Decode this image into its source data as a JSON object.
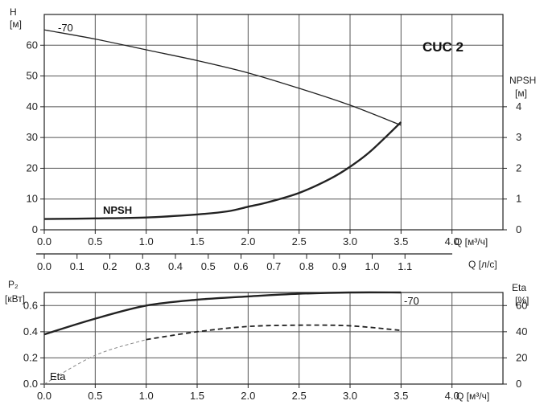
{
  "chart_data": [
    {
      "type": "line",
      "title": "CUC 2",
      "xlabel": "Q [м³/ч]",
      "ylabel_line1": "H",
      "ylabel_line2": "[м]",
      "y2label_line1": "NPSH",
      "y2label_line2": "[м]",
      "xlim": [
        0,
        4.5
      ],
      "ylim": [
        0,
        70
      ],
      "y2lim": [
        0,
        7
      ],
      "x_ticks": [
        "0.0",
        "0.5",
        "1.0",
        "1.5",
        "2.0",
        "2.5",
        "3.0",
        "3.5",
        "4.0"
      ],
      "y_ticks": [
        "0",
        "10",
        "20",
        "30",
        "40",
        "50",
        "60"
      ],
      "y2_ticks": [
        "0",
        "1",
        "2",
        "3",
        "4"
      ],
      "grid": true,
      "series": [
        {
          "name": "-70",
          "axis": "y",
          "x": [
            0.0,
            0.5,
            1.0,
            1.5,
            2.0,
            2.5,
            3.0,
            3.5
          ],
          "y": [
            65,
            62,
            58.5,
            55,
            51,
            46,
            40.5,
            34
          ]
        },
        {
          "name": "NPSH",
          "axis": "y2",
          "x": [
            0.0,
            0.5,
            1.0,
            1.5,
            1.8,
            2.0,
            2.2,
            2.5,
            2.8,
            3.0,
            3.2,
            3.5
          ],
          "y": [
            0.35,
            0.37,
            0.4,
            0.5,
            0.6,
            0.75,
            0.9,
            1.2,
            1.65,
            2.05,
            2.55,
            3.5
          ]
        }
      ]
    },
    {
      "type": "axis",
      "xlabel": "Q [л/с]",
      "x_ticks": [
        "0.0",
        "0.1",
        "0.2",
        "0.3",
        "0.4",
        "0.5",
        "0.6",
        "0.7",
        "0.8",
        "0.9",
        "1.0",
        "1.1"
      ]
    },
    {
      "type": "line",
      "xlabel": "Q [м³/ч]",
      "ylabel_line1": "P₂",
      "ylabel_line2": "[кВт]",
      "y2label_line1": "Eta",
      "y2label_line2": "[%]",
      "xlim": [
        0,
        4.5
      ],
      "ylim": [
        0,
        0.7
      ],
      "y2lim": [
        0,
        70
      ],
      "x_ticks": [
        "0.0",
        "0.5",
        "1.0",
        "1.5",
        "2.0",
        "2.5",
        "3.0",
        "3.5",
        "4.0"
      ],
      "y_ticks": [
        "0.0",
        "0.2",
        "0.4",
        "0.6"
      ],
      "y2_ticks": [
        "0",
        "20",
        "40",
        "60"
      ],
      "grid": true,
      "series": [
        {
          "name": "-70",
          "axis": "y",
          "x": [
            0.0,
            0.5,
            1.0,
            1.5,
            2.0,
            2.5,
            3.0,
            3.5
          ],
          "y": [
            0.38,
            0.5,
            0.6,
            0.645,
            0.67,
            0.69,
            0.7,
            0.7
          ]
        },
        {
          "name": "Eta",
          "axis": "y2",
          "style": "dashed",
          "x": [
            0.0,
            0.5,
            1.0,
            1.5,
            2.0,
            2.5,
            3.0,
            3.5
          ],
          "y": [
            0,
            22,
            34,
            40,
            44,
            45,
            44.5,
            41
          ]
        }
      ]
    }
  ]
}
